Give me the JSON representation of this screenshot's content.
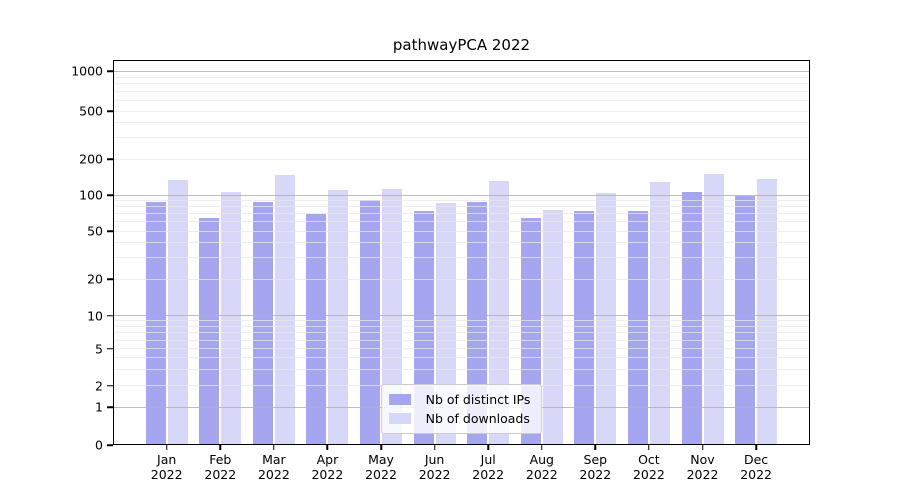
{
  "title": "pathwayPCA 2022",
  "chart_data": {
    "type": "bar",
    "title": "pathwayPCA 2022",
    "categories": [
      "Jan",
      "Feb",
      "Mar",
      "Apr",
      "May",
      "Jun",
      "Jul",
      "Aug",
      "Sep",
      "Oct",
      "Nov",
      "Dec"
    ],
    "x_tick_second_line": "2022",
    "series": [
      {
        "name": "Nb of distinct IPs",
        "color": "#a5a5f0",
        "values": [
          87,
          64,
          88,
          70,
          91,
          74,
          88,
          64,
          74,
          73,
          105,
          98
        ]
      },
      {
        "name": "Nb of downloads",
        "color": "#d7d7f8",
        "values": [
          134,
          106,
          148,
          111,
          113,
          85,
          132,
          75,
          103,
          129,
          150,
          136
        ]
      }
    ],
    "y_axis": {
      "tick_labels": [
        "0",
        "1",
        "2",
        "5",
        "10",
        "20",
        "50",
        "100",
        "200",
        "500",
        "1000"
      ],
      "ticks": [
        0,
        1,
        2,
        5,
        10,
        20,
        50,
        100,
        200,
        500,
        1000
      ],
      "scale": "log-like (compressed near zero)",
      "top_value": 1250
    },
    "grid": "on",
    "legend_position": "lower center"
  },
  "colors": {
    "bar_distinct_ips": "#a5a5f0",
    "bar_downloads": "#d7d7f8",
    "grid_major": "#b2b2b2",
    "grid_minor": "#e8e8eb",
    "axis_spine": "#000000",
    "legend_border": "#cccccc",
    "legend_background": "rgba(255,255,255,0.8)",
    "text": "#000000"
  }
}
